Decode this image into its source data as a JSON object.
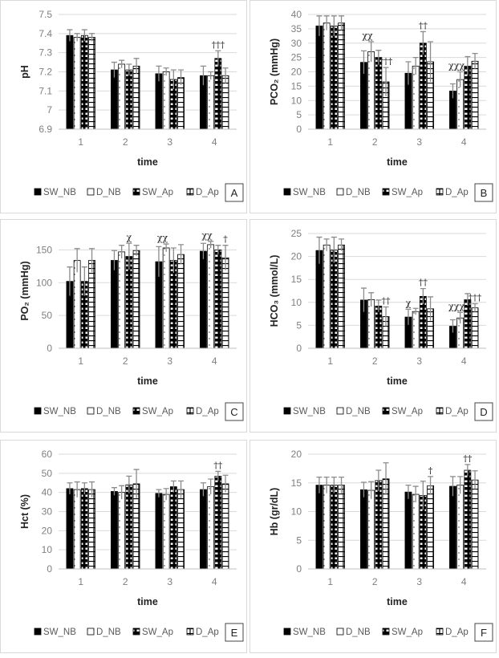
{
  "legend": [
    "SW_NB",
    "D_NB",
    "SW_Ap",
    "D_Ap"
  ],
  "colors": {
    "bar_dark": "#000000",
    "bar_light": "#ffffff",
    "error_bar": "#8c8c8c",
    "grid": "#d9d9d9",
    "tick_text": "#7f7f7f"
  },
  "chart_data": [
    {
      "type": "bar",
      "panel_letter": "A",
      "ylabel": "pH",
      "xlabel": "time",
      "categories": [
        "1",
        "2",
        "3",
        "4"
      ],
      "ylim": [
        6.9,
        7.5
      ],
      "yticks": [
        "6.9",
        "7",
        "7.1",
        "7.2",
        "7.3",
        "7.4",
        "7.5"
      ],
      "grid": true,
      "legend_position": "bottom",
      "series": [
        {
          "name": "SW_NB",
          "values": [
            7.39,
            7.21,
            7.19,
            7.18
          ],
          "errors": [
            0.03,
            0.04,
            0.04,
            0.05
          ]
        },
        {
          "name": "D_NB",
          "values": [
            7.38,
            7.24,
            7.2,
            7.18
          ],
          "errors": [
            0.02,
            0.02,
            0.02,
            0.02
          ]
        },
        {
          "name": "SW_Ap",
          "values": [
            7.39,
            7.21,
            7.16,
            7.27
          ],
          "errors": [
            0.03,
            0.03,
            0.05,
            0.04
          ]
        },
        {
          "name": "D_Ap",
          "values": [
            7.38,
            7.23,
            7.17,
            7.18
          ],
          "errors": [
            0.02,
            0.04,
            0.04,
            0.04
          ]
        }
      ],
      "annotations": [
        {
          "text": "†††",
          "category": "4",
          "series": "SW_Ap"
        }
      ]
    },
    {
      "type": "bar",
      "panel_letter": "B",
      "ylabel": "PCO₂ (mmHg)",
      "xlabel": "time",
      "categories": [
        "1",
        "2",
        "3",
        "4"
      ],
      "ylim": [
        0,
        40
      ],
      "yticks": [
        "0",
        "5",
        "10",
        "15",
        "20",
        "25",
        "30",
        "35",
        "40"
      ],
      "grid": true,
      "legend_position": "bottom",
      "series": [
        {
          "name": "SW_NB",
          "values": [
            36,
            23.3,
            19.5,
            13.3
          ],
          "errors": [
            3.5,
            4,
            4,
            2.5
          ]
        },
        {
          "name": "D_NB",
          "values": [
            37,
            27,
            22,
            17.3
          ],
          "errors": [
            2.5,
            3.5,
            3,
            2.7
          ]
        },
        {
          "name": "SW_Ap",
          "values": [
            36,
            25,
            30,
            22
          ],
          "errors": [
            3.5,
            2.5,
            4,
            3.3
          ]
        },
        {
          "name": "D_Ap",
          "values": [
            37,
            16.5,
            23.5,
            23.7
          ],
          "errors": [
            2.5,
            5,
            7,
            2.7
          ]
        }
      ],
      "annotations": [
        {
          "text": "χχ",
          "category": "2",
          "series": "SW_NB"
        },
        {
          "text": "†††",
          "category": "2",
          "series": "D_Ap"
        },
        {
          "text": "††",
          "category": "3",
          "series": "SW_Ap"
        },
        {
          "text": "χχχ",
          "category": "4",
          "series": "SW_NB"
        }
      ]
    },
    {
      "type": "bar",
      "panel_letter": "C",
      "ylabel": "PO₂ (mmHg)",
      "xlabel": "time",
      "categories": [
        "1",
        "2",
        "3",
        "4"
      ],
      "ylim": [
        0,
        175
      ],
      "yticks": [
        "0",
        "50",
        "100",
        "150"
      ],
      "grid": true,
      "legend_position": "bottom",
      "series": [
        {
          "name": "SW_NB",
          "values": [
            102,
            134,
            132,
            148
          ],
          "errors": [
            22,
            15,
            23,
            12
          ]
        },
        {
          "name": "D_NB",
          "values": [
            134,
            147,
            153,
            158
          ],
          "errors": [
            18,
            10,
            6,
            5
          ]
        },
        {
          "name": "SW_Ap",
          "values": [
            102,
            140,
            134,
            150
          ],
          "errors": [
            22,
            20,
            19,
            7
          ]
        },
        {
          "name": "D_Ap",
          "values": [
            134,
            149,
            143,
            138
          ],
          "errors": [
            18,
            8,
            15,
            19
          ]
        }
      ],
      "annotations": [
        {
          "text": "χ",
          "category": "2",
          "series": "SW_Ap"
        },
        {
          "text": "χχ",
          "category": "3",
          "series": "SW_NB"
        },
        {
          "text": "χχ",
          "category": "4",
          "series": "SW_NB"
        },
        {
          "text": "†",
          "category": "4",
          "series": "D_Ap"
        }
      ]
    },
    {
      "type": "bar",
      "panel_letter": "D",
      "ylabel": "HCO₃ (mmol/L)",
      "xlabel": "time",
      "categories": [
        "1",
        "2",
        "3",
        "4"
      ],
      "ylim": [
        0,
        25
      ],
      "yticks": [
        "0",
        "5",
        "10",
        "15",
        "20",
        "25"
      ],
      "grid": true,
      "legend_position": "bottom",
      "series": [
        {
          "name": "SW_NB",
          "values": [
            21.3,
            10.5,
            6.8,
            4.8
          ],
          "errors": [
            2.9,
            2.6,
            1.7,
            1.4
          ]
        },
        {
          "name": "D_NB",
          "values": [
            22.5,
            10.6,
            8.0,
            6.6
          ],
          "errors": [
            1.3,
            1.5,
            0.7,
            1.2
          ]
        },
        {
          "name": "SW_Ap",
          "values": [
            21.4,
            9.2,
            11.3,
            10.6
          ],
          "errors": [
            2.8,
            1.3,
            1.7,
            1.3
          ]
        },
        {
          "name": "D_Ap",
          "values": [
            22.5,
            6.9,
            8.6,
            8.8
          ],
          "errors": [
            1.3,
            2.1,
            2.6,
            0.9
          ]
        }
      ],
      "annotations": [
        {
          "text": "††",
          "category": "2",
          "series": "D_Ap"
        },
        {
          "text": "χ",
          "category": "3",
          "series": "SW_NB"
        },
        {
          "text": "††",
          "category": "3",
          "series": "SW_Ap"
        },
        {
          "text": "χχχ",
          "category": "4",
          "series": "SW_NB"
        },
        {
          "text": "†††",
          "category": "4",
          "series": "D_Ap"
        }
      ]
    },
    {
      "type": "bar",
      "panel_letter": "E",
      "ylabel": "Hct (%)",
      "xlabel": "time",
      "categories": [
        "1",
        "2",
        "3",
        "4"
      ],
      "ylim": [
        0,
        60
      ],
      "yticks": [
        "0",
        "10",
        "20",
        "30",
        "40",
        "50",
        "60"
      ],
      "grid": true,
      "legend_position": "bottom",
      "series": [
        {
          "name": "SW_NB",
          "values": [
            42,
            40.5,
            39.5,
            41.5
          ],
          "errors": [
            3,
            2,
            2,
            3.5
          ]
        },
        {
          "name": "D_NB",
          "values": [
            41.5,
            40,
            39,
            43
          ],
          "errors": [
            4,
            3.5,
            3,
            4
          ]
        },
        {
          "name": "SW_Ap",
          "values": [
            42,
            44,
            43,
            48.5
          ],
          "errors": [
            3,
            4.5,
            3,
            2.5
          ]
        },
        {
          "name": "D_Ap",
          "values": [
            41.5,
            44.5,
            41.5,
            44.5
          ],
          "errors": [
            4,
            7.5,
            4.5,
            4.5
          ]
        }
      ],
      "annotations": [
        {
          "text": "††",
          "category": "4",
          "series": "SW_Ap"
        }
      ]
    },
    {
      "type": "bar",
      "panel_letter": "F",
      "ylabel": "Hb (gr/dL)",
      "xlabel": "time",
      "categories": [
        "1",
        "2",
        "3",
        "4"
      ],
      "ylim": [
        0,
        20
      ],
      "yticks": [
        "0",
        "5",
        "10",
        "15",
        "20"
      ],
      "grid": true,
      "legend_position": "bottom",
      "series": [
        {
          "name": "SW_NB",
          "values": [
            14.6,
            13.8,
            13.4,
            14.4
          ],
          "errors": [
            1.4,
            1.3,
            1.2,
            1.7
          ]
        },
        {
          "name": "D_NB",
          "values": [
            14.6,
            13.7,
            13.0,
            14.6
          ],
          "errors": [
            1.4,
            1.5,
            1.4,
            1.5
          ]
        },
        {
          "name": "SW_Ap",
          "values": [
            14.6,
            15.4,
            12.8,
            17.2
          ],
          "errors": [
            1.4,
            1.8,
            2.5,
            1.0
          ]
        },
        {
          "name": "D_Ap",
          "values": [
            14.6,
            15.7,
            14.5,
            15.5
          ],
          "errors": [
            1.4,
            2.8,
            1.6,
            1.6
          ]
        }
      ],
      "annotations": [
        {
          "text": "†",
          "category": "3",
          "series": "D_Ap"
        },
        {
          "text": "††",
          "category": "4",
          "series": "SW_Ap"
        }
      ]
    }
  ]
}
